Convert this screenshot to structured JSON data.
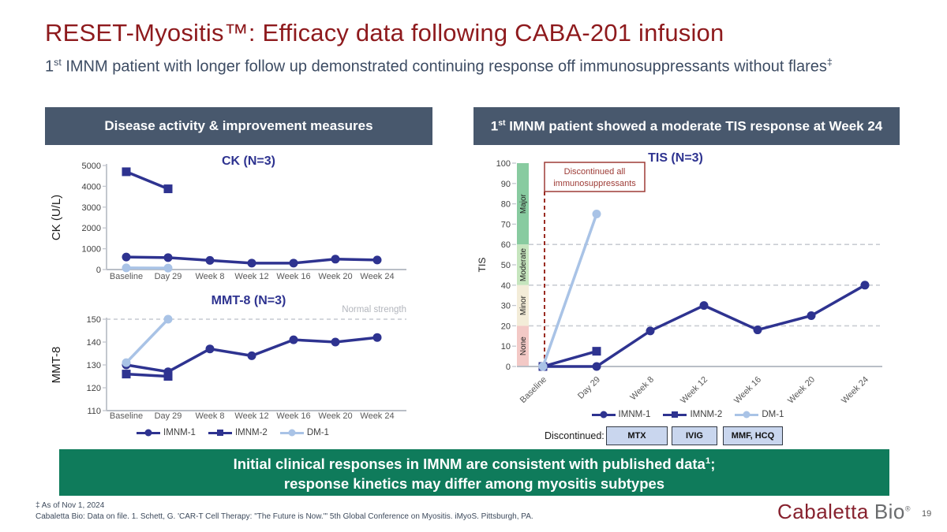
{
  "slide": {
    "title": "RESET-Myositis™: Efficacy data following CABA-201 infusion",
    "subtitle": {
      "num": "1",
      "sup": "st",
      "text": " IMNM patient with longer follow up demonstrated continuing response off immunosuppressants without flares",
      "dagger": "‡"
    },
    "page_number": "19"
  },
  "panels": {
    "left_header": "Disease activity & improvement measures",
    "right_header": {
      "num": "1",
      "sup": "st",
      "text": " IMNM patient showed a moderate TIS response at Week 24"
    }
  },
  "colors": {
    "title_maroon": "#8E1A1D",
    "header_slate": "#48586D",
    "banner_green": "#0F7B5B",
    "series_navy": "#2E3390",
    "series_lightblue": "#A9C3E6",
    "annotation_red": "#9D3B36",
    "discontinued_box_fill": "#C9D6EE"
  },
  "chart_data": [
    {
      "id": "ck",
      "type": "line",
      "title": "CK (N=3)",
      "ylabel": "CK (U/L)",
      "categories": [
        "Baseline",
        "Day 29",
        "Week 8",
        "Week 12",
        "Week 16",
        "Week 20",
        "Week 24"
      ],
      "ylim": [
        0,
        5000
      ],
      "yticks": [
        0,
        1000,
        2000,
        3000,
        4000,
        5000
      ],
      "grid": false,
      "series": [
        {
          "name": "IMNM-1",
          "marker": "circle",
          "color": "#2E3390",
          "values": [
            600,
            575,
            440,
            310,
            310,
            500,
            460
          ]
        },
        {
          "name": "IMNM-2",
          "marker": "square",
          "color": "#2E3390",
          "values": [
            4700,
            3880,
            null,
            null,
            null,
            null,
            null
          ]
        },
        {
          "name": "DM-1",
          "marker": "circle",
          "color": "#A9C3E6",
          "values": [
            80,
            70,
            null,
            null,
            null,
            null,
            null
          ]
        }
      ]
    },
    {
      "id": "mmt8",
      "type": "line",
      "title": "MMT-8 (N=3)",
      "ylabel": "MMT-8",
      "categories": [
        "Baseline",
        "Day 29",
        "Week 8",
        "Week 12",
        "Week 16",
        "Week 20",
        "Week 24"
      ],
      "ylim": [
        110,
        150
      ],
      "yticks": [
        110,
        120,
        130,
        140,
        150
      ],
      "ref_line": {
        "value": 150,
        "label": "Normal strength"
      },
      "legend": [
        "IMNM-1",
        "IMNM-2",
        "DM-1"
      ],
      "series": [
        {
          "name": "IMNM-1",
          "marker": "circle",
          "color": "#2E3390",
          "values": [
            130,
            127,
            137,
            134,
            141,
            140,
            142
          ]
        },
        {
          "name": "IMNM-2",
          "marker": "square",
          "color": "#2E3390",
          "values": [
            126,
            125,
            null,
            null,
            null,
            null,
            null
          ]
        },
        {
          "name": "DM-1",
          "marker": "circle",
          "color": "#A9C3E6",
          "values": [
            131,
            150,
            null,
            null,
            null,
            null,
            null
          ]
        }
      ]
    },
    {
      "id": "tis",
      "type": "line",
      "title": "TIS (N=3)",
      "ylabel": "TIS",
      "categories": [
        "Baseline",
        "Day 29",
        "Week 8",
        "Week 12",
        "Week 16",
        "Week 20",
        "Week 24"
      ],
      "ylim": [
        0,
        100
      ],
      "yticks": [
        0,
        10,
        20,
        30,
        40,
        50,
        60,
        70,
        80,
        90,
        100
      ],
      "gridlines": [
        20,
        40,
        60
      ],
      "bands": [
        {
          "label": "Major",
          "from": 60,
          "to": 100,
          "color": "#88CBA0"
        },
        {
          "label": "Moderate",
          "from": 40,
          "to": 60,
          "color": "#C6E5BE"
        },
        {
          "label": "Minor",
          "from": 20,
          "to": 40,
          "color": "#F3ECD8"
        },
        {
          "label": "None",
          "from": 0,
          "to": 20,
          "color": "#F3C9C6"
        }
      ],
      "annotation_box": {
        "lines": [
          "Discontinued all",
          "immunosuppressants"
        ]
      },
      "legend": [
        "IMNM-1",
        "IMNM-2",
        "DM-1"
      ],
      "discontinued": {
        "label": "Discontinued:",
        "boxes": [
          "MTX",
          "IVIG",
          "MMF, HCQ"
        ]
      },
      "series": [
        {
          "name": "IMNM-1",
          "marker": "circle",
          "color": "#2E3390",
          "values": [
            0,
            0,
            17.5,
            30,
            18,
            25,
            40
          ]
        },
        {
          "name": "IMNM-2",
          "marker": "square",
          "color": "#2E3390",
          "values": [
            0,
            7.5,
            null,
            null,
            null,
            null,
            null
          ]
        },
        {
          "name": "DM-1",
          "marker": "circle",
          "color": "#A9C3E6",
          "values": [
            0,
            75,
            null,
            null,
            null,
            null,
            null
          ]
        }
      ]
    }
  ],
  "banner": {
    "line1": "Initial clinical responses in IMNM are consistent with published data",
    "sup": "1",
    "tail": ";",
    "line2": "response kinetics may differ among myositis subtypes"
  },
  "footnotes": {
    "asof": "‡ As of Nov 1, 2024",
    "citation": "Cabaletta Bio: Data on file. 1. Schett, G. 'CAR-T Cell Therapy: \"The Future is Now.\"' 5th Global Conference on Myositis. iMyoS. Pittsburgh, PA."
  },
  "logo": {
    "name1": "Cabaletta",
    "name2": "Bio",
    "reg": "®"
  }
}
